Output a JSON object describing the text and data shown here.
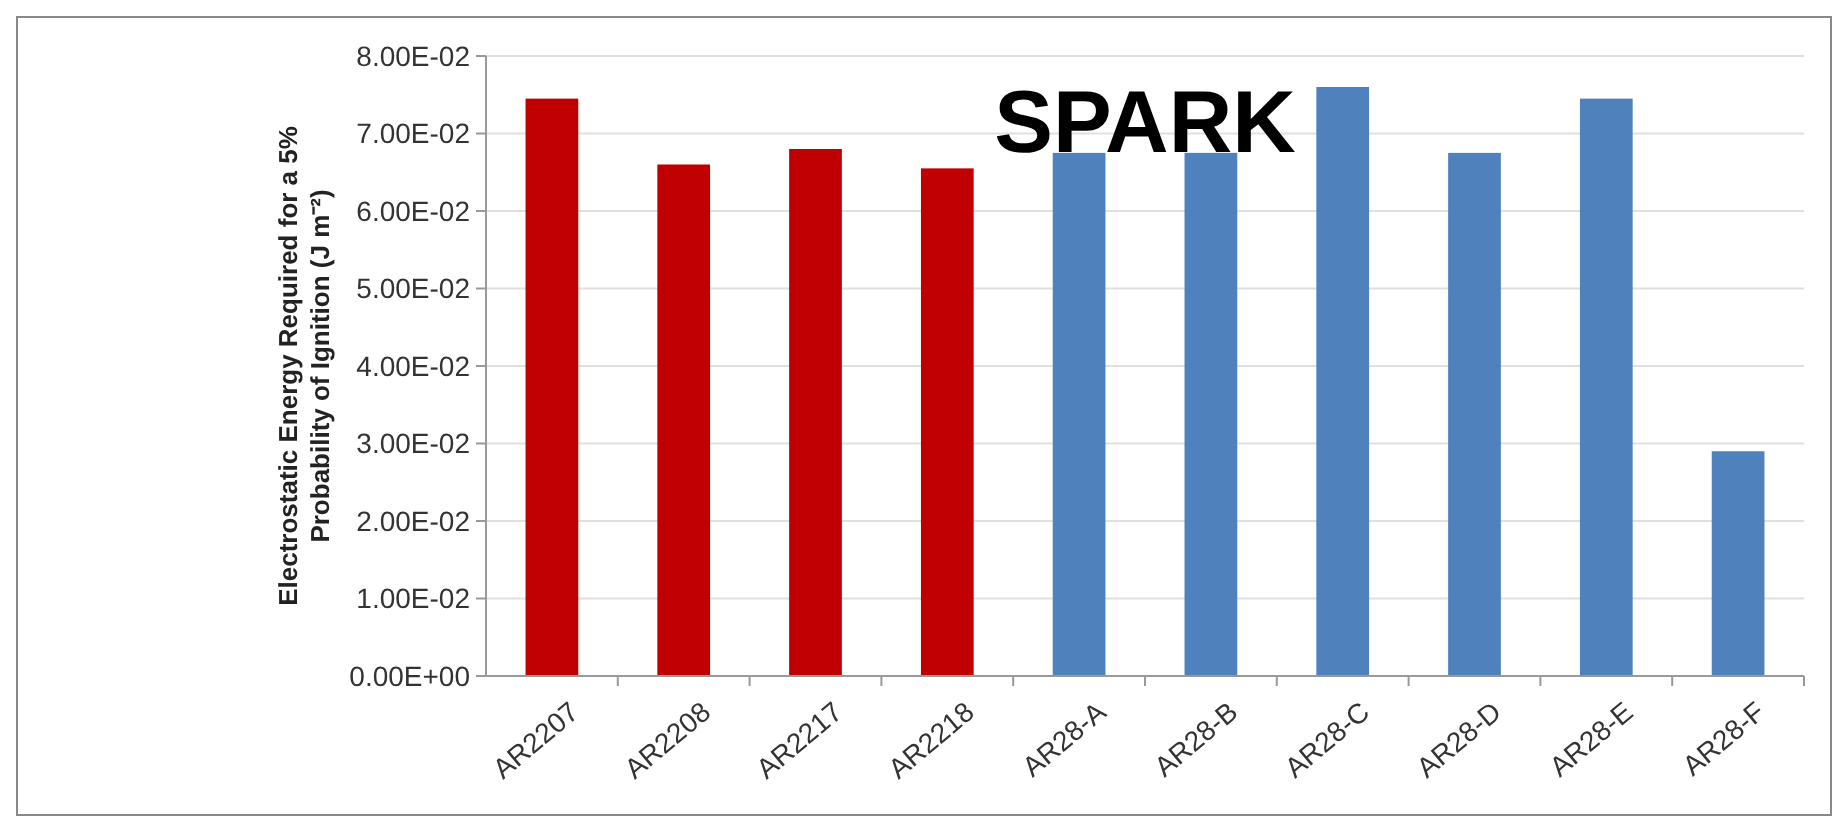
{
  "chart_data": {
    "type": "bar",
    "title": "SPARK",
    "ylabel": "Electrostatic Energy Required for a 5% Probability of Ignition (J m⁻²)",
    "categories": [
      "AR2207",
      "AR2208",
      "AR2217",
      "AR2218",
      "AR28-A",
      "AR28-B",
      "AR28-C",
      "AR28-D",
      "AR28-E",
      "AR28-F"
    ],
    "values": [
      0.0745,
      0.066,
      0.068,
      0.0655,
      0.0675,
      0.0675,
      0.076,
      0.0675,
      0.0745,
      0.029
    ],
    "colors": [
      "#c00000",
      "#c00000",
      "#c00000",
      "#c00000",
      "#4f81bd",
      "#4f81bd",
      "#4f81bd",
      "#4f81bd",
      "#4f81bd",
      "#4f81bd"
    ],
    "ylim": [
      0,
      0.08
    ],
    "yticks": [
      {
        "value": 0,
        "label": "0.00E+00"
      },
      {
        "value": 0.01,
        "label": "1.00E-02"
      },
      {
        "value": 0.02,
        "label": "2.00E-02"
      },
      {
        "value": 0.03,
        "label": "3.00E-02"
      },
      {
        "value": 0.04,
        "label": "4.00E-02"
      },
      {
        "value": 0.05,
        "label": "5.00E-02"
      },
      {
        "value": 0.06,
        "label": "6.00E-02"
      },
      {
        "value": 0.07,
        "label": "7.00E-02"
      },
      {
        "value": 0.08,
        "label": "8.00E-02"
      }
    ],
    "grid": "y"
  }
}
